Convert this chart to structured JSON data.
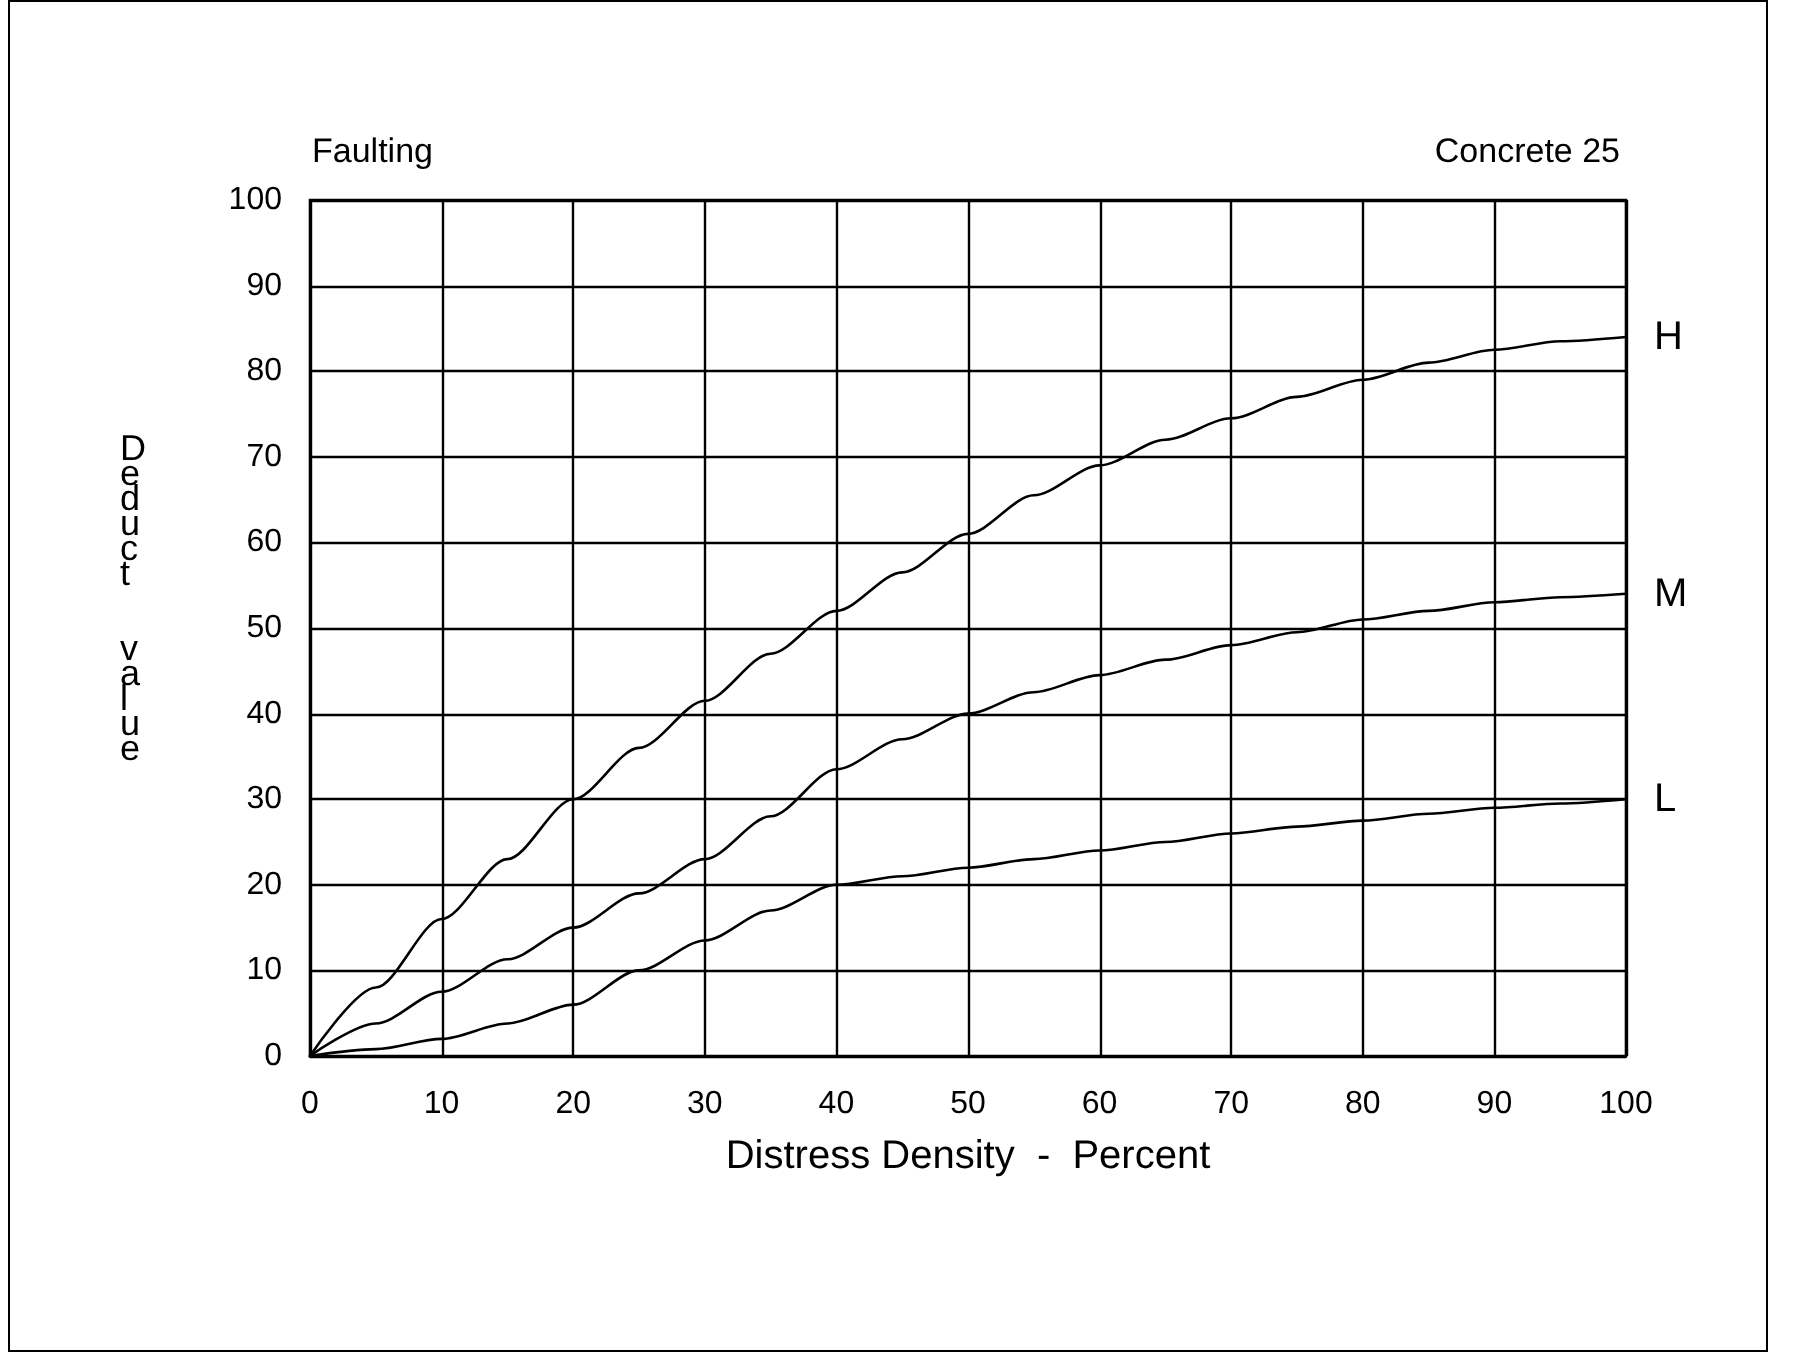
{
  "chart_data": {
    "type": "line",
    "title": "Faulting",
    "annotations": [
      "Concrete 25"
    ],
    "xlabel": "Distress Density  -  Percent",
    "ylabel": "Deduct  value",
    "x": [
      0,
      5,
      10,
      15,
      20,
      25,
      30,
      35,
      40,
      45,
      50,
      55,
      60,
      65,
      70,
      75,
      80,
      85,
      90,
      95,
      100
    ],
    "series": [
      {
        "name": "H",
        "color": "#000000",
        "values": [
          0,
          8,
          16,
          23,
          30,
          36,
          41.5,
          47,
          52,
          56.5,
          61,
          65.5,
          69,
          72,
          74.5,
          77,
          79,
          81,
          82.5,
          83.5,
          84
        ]
      },
      {
        "name": "M",
        "color": "#000000",
        "values": [
          0,
          3.8,
          7.5,
          11.3,
          15,
          19,
          23,
          28,
          33.5,
          37,
          40,
          42.5,
          44.5,
          46.3,
          48,
          49.5,
          51,
          52,
          53,
          53.6,
          54
        ]
      },
      {
        "name": "L",
        "color": "#000000",
        "values": [
          0,
          0.8,
          2,
          3.8,
          6,
          10,
          13.5,
          17,
          20,
          21,
          22,
          23,
          24,
          25,
          26,
          26.8,
          27.5,
          28.3,
          29,
          29.5,
          30
        ]
      }
    ],
    "xlim": [
      0,
      100
    ],
    "xticks": [
      0,
      10,
      20,
      30,
      40,
      50,
      60,
      70,
      80,
      90,
      100
    ],
    "ylim": [
      0,
      100
    ],
    "yticks": [
      0,
      10,
      20,
      30,
      40,
      50,
      60,
      70,
      80,
      90,
      100
    ],
    "grid": true,
    "legend": false,
    "marker": "none",
    "line_style": "solid"
  }
}
